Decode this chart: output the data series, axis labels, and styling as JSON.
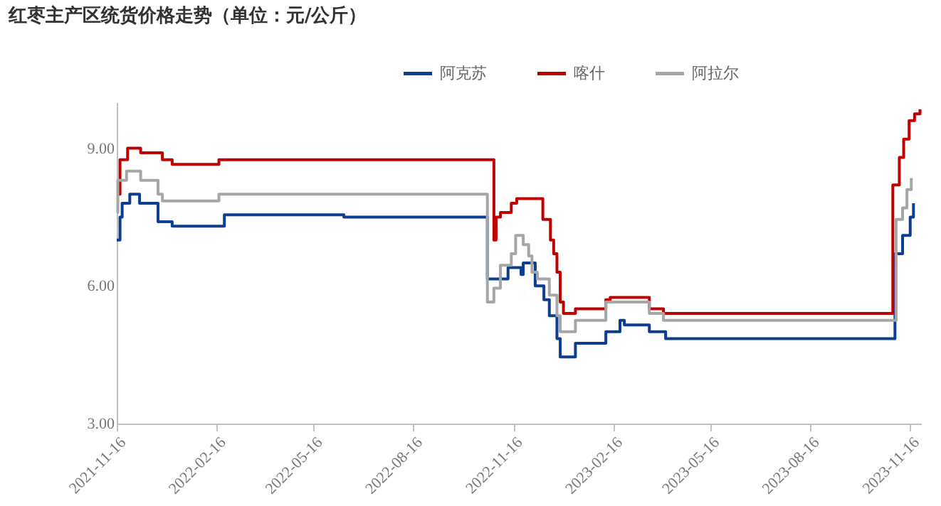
{
  "chart_data": {
    "type": "step",
    "title": "红枣主产区统货价格走势（单位：元/公斤）",
    "xlim": [
      "2021-11-16",
      "2023-11-26"
    ],
    "xticks": [
      "2021-11-16",
      "2022-02-16",
      "2022-05-16",
      "2022-08-16",
      "2022-11-16",
      "2023-02-16",
      "2023-05-16",
      "2023-08-16",
      "2023-11-16"
    ],
    "ylim": [
      3,
      10
    ],
    "yticks": [
      {
        "value": 3,
        "label": "3.00"
      },
      {
        "value": 6,
        "label": "6.00"
      },
      {
        "value": 9,
        "label": "9.00"
      }
    ],
    "grid": false,
    "legend": "top right",
    "marker": "none",
    "line_style": "solid",
    "series": [
      {
        "name": "阿克苏",
        "color": "#0b3d91",
        "x": [
          "2021-11-16",
          "2021-11-19",
          "2021-11-21",
          "2021-11-28",
          "2021-12-07",
          "2021-12-24",
          "2022-01-06",
          "2022-02-23",
          "2022-06-13",
          "2022-10-23",
          "2022-11-11",
          "2022-11-23",
          "2022-11-25",
          "2022-12-06",
          "2022-12-14",
          "2022-12-19",
          "2022-12-26",
          "2022-12-29",
          "2023-01-12",
          "2023-02-09",
          "2023-02-22",
          "2023-02-26",
          "2023-03-21",
          "2023-04-05",
          "2023-11-02",
          "2023-11-09",
          "2023-11-16",
          "2023-11-19"
        ],
        "values": [
          7.0,
          7.5,
          7.8,
          8.0,
          7.8,
          7.4,
          7.3,
          7.55,
          7.5,
          6.15,
          6.4,
          6.25,
          6.5,
          6.0,
          5.7,
          5.35,
          4.85,
          4.45,
          4.75,
          5.0,
          5.25,
          5.15,
          5.0,
          4.85,
          6.7,
          7.1,
          7.5,
          7.8
        ]
      },
      {
        "name": "喀什",
        "color": "#c00000",
        "x": [
          "2021-11-16",
          "2021-11-19",
          "2021-11-26",
          "2021-12-08",
          "2021-12-28",
          "2022-01-06",
          "2022-02-18",
          "2022-10-29",
          "2022-10-31",
          "2022-11-04",
          "2022-11-14",
          "2022-11-19",
          "2022-12-13",
          "2022-12-20",
          "2022-12-23",
          "2022-12-26",
          "2022-12-29",
          "2023-01-01",
          "2023-01-12",
          "2023-02-09",
          "2023-02-13",
          "2023-03-21",
          "2023-04-03",
          "2023-10-31",
          "2023-11-06",
          "2023-11-10",
          "2023-11-15",
          "2023-11-20",
          "2023-11-25"
        ],
        "values": [
          8.0,
          8.75,
          9.0,
          8.9,
          8.75,
          8.65,
          8.75,
          7.0,
          7.5,
          7.6,
          7.8,
          7.9,
          7.45,
          7.0,
          6.7,
          6.3,
          5.65,
          5.4,
          5.5,
          5.7,
          5.75,
          5.5,
          5.4,
          8.2,
          8.8,
          9.2,
          9.6,
          9.75,
          9.85
        ]
      },
      {
        "name": "阿拉尔",
        "color": "#a6a6a6",
        "x": [
          "2021-11-16",
          "2021-11-17",
          "2021-11-25",
          "2021-12-08",
          "2021-12-24",
          "2021-12-28",
          "2022-02-18",
          "2022-10-23",
          "2022-10-29",
          "2022-11-04",
          "2022-11-14",
          "2022-11-18",
          "2022-11-25",
          "2022-11-30",
          "2022-12-03",
          "2022-12-08",
          "2022-12-19",
          "2022-12-26",
          "2022-12-29",
          "2023-01-12",
          "2023-02-09",
          "2023-03-21",
          "2023-04-03",
          "2023-11-03",
          "2023-11-09",
          "2023-11-13",
          "2023-11-17"
        ],
        "values": [
          7.6,
          8.3,
          8.5,
          8.3,
          8.0,
          7.85,
          8.0,
          5.65,
          5.95,
          6.45,
          6.7,
          7.1,
          6.9,
          6.65,
          6.3,
          6.15,
          5.8,
          5.35,
          5.0,
          5.25,
          5.65,
          5.4,
          5.25,
          7.45,
          7.7,
          8.1,
          8.35
        ]
      }
    ]
  }
}
